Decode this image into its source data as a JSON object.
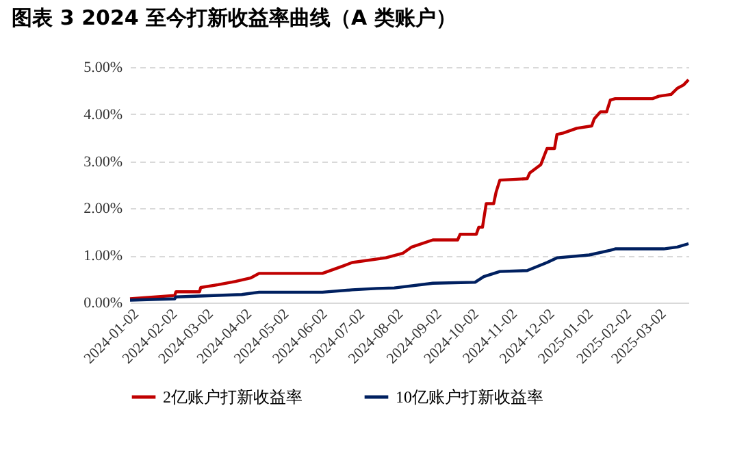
{
  "chart_data": {
    "type": "line",
    "title": "图表 3 2024 至今打新收益率曲线（A 类账户）",
    "xlim": [
      "2024-01-02",
      "2025-03-27"
    ],
    "xticks": [
      "2024-01-02",
      "2024-02-02",
      "2024-03-02",
      "2024-04-02",
      "2024-05-02",
      "2024-06-02",
      "2024-07-02",
      "2024-08-02",
      "2024-09-02",
      "2024-10-02",
      "2024-11-02",
      "2024-12-02",
      "2025-01-02",
      "2025-02-02",
      "2025-03-02"
    ],
    "ylim": [
      0,
      5
    ],
    "yticks": [
      {
        "value": 0,
        "label": "0.00%"
      },
      {
        "value": 1,
        "label": "1.00%"
      },
      {
        "value": 2,
        "label": "2.00%"
      },
      {
        "value": 3,
        "label": "3.00%"
      },
      {
        "value": 4,
        "label": "4.00%"
      },
      {
        "value": 5,
        "label": "5.00%"
      }
    ],
    "grid": "y",
    "legend": "bottom",
    "series": [
      {
        "name": "2亿账户打新收益率",
        "color": "#c00000",
        "x": [
          "2024-01-02",
          "2024-02-07",
          "2024-02-08",
          "2024-02-27",
          "2024-02-28",
          "2024-03-13",
          "2024-03-27",
          "2024-04-08",
          "2024-04-15",
          "2024-06-05",
          "2024-06-22",
          "2024-06-29",
          "2024-07-26",
          "2024-08-09",
          "2024-08-16",
          "2024-09-02",
          "2024-09-22",
          "2024-09-24",
          "2024-10-07",
          "2024-10-09",
          "2024-10-12",
          "2024-10-15",
          "2024-10-21",
          "2024-10-23",
          "2024-10-26",
          "2024-11-17",
          "2024-11-19",
          "2024-11-28",
          "2024-12-03",
          "2024-12-09",
          "2024-12-11",
          "2024-12-16",
          "2024-12-27",
          "2025-01-08",
          "2025-01-10",
          "2025-01-15",
          "2025-01-20",
          "2025-01-23",
          "2025-01-27",
          "2025-02-26",
          "2025-03-03",
          "2025-03-13",
          "2025-03-18",
          "2025-03-23",
          "2025-03-27"
        ],
        "values": [
          0.08,
          0.15,
          0.23,
          0.23,
          0.32,
          0.38,
          0.45,
          0.52,
          0.62,
          0.62,
          0.78,
          0.85,
          0.95,
          1.05,
          1.18,
          1.33,
          1.33,
          1.45,
          1.45,
          1.6,
          1.6,
          2.1,
          2.1,
          2.35,
          2.6,
          2.63,
          2.75,
          2.93,
          3.27,
          3.27,
          3.57,
          3.6,
          3.7,
          3.75,
          3.9,
          4.05,
          4.05,
          4.3,
          4.33,
          4.33,
          4.38,
          4.42,
          4.55,
          4.62,
          4.73
        ]
      },
      {
        "name": "10亿账户打新收益率",
        "color": "#002060",
        "x": [
          "2024-01-02",
          "2024-02-07",
          "2024-02-08",
          "2024-04-01",
          "2024-04-15",
          "2024-06-05",
          "2024-06-29",
          "2024-07-19",
          "2024-08-02",
          "2024-09-02",
          "2024-10-06",
          "2024-10-13",
          "2024-10-26",
          "2024-11-17",
          "2024-12-03",
          "2024-12-11",
          "2025-01-06",
          "2025-01-23",
          "2025-01-27",
          "2025-03-07",
          "2025-03-18",
          "2025-03-27"
        ],
        "values": [
          0.05,
          0.08,
          0.12,
          0.17,
          0.22,
          0.22,
          0.27,
          0.3,
          0.31,
          0.41,
          0.43,
          0.55,
          0.66,
          0.68,
          0.85,
          0.95,
          1.01,
          1.11,
          1.14,
          1.14,
          1.18,
          1.25
        ]
      }
    ]
  }
}
